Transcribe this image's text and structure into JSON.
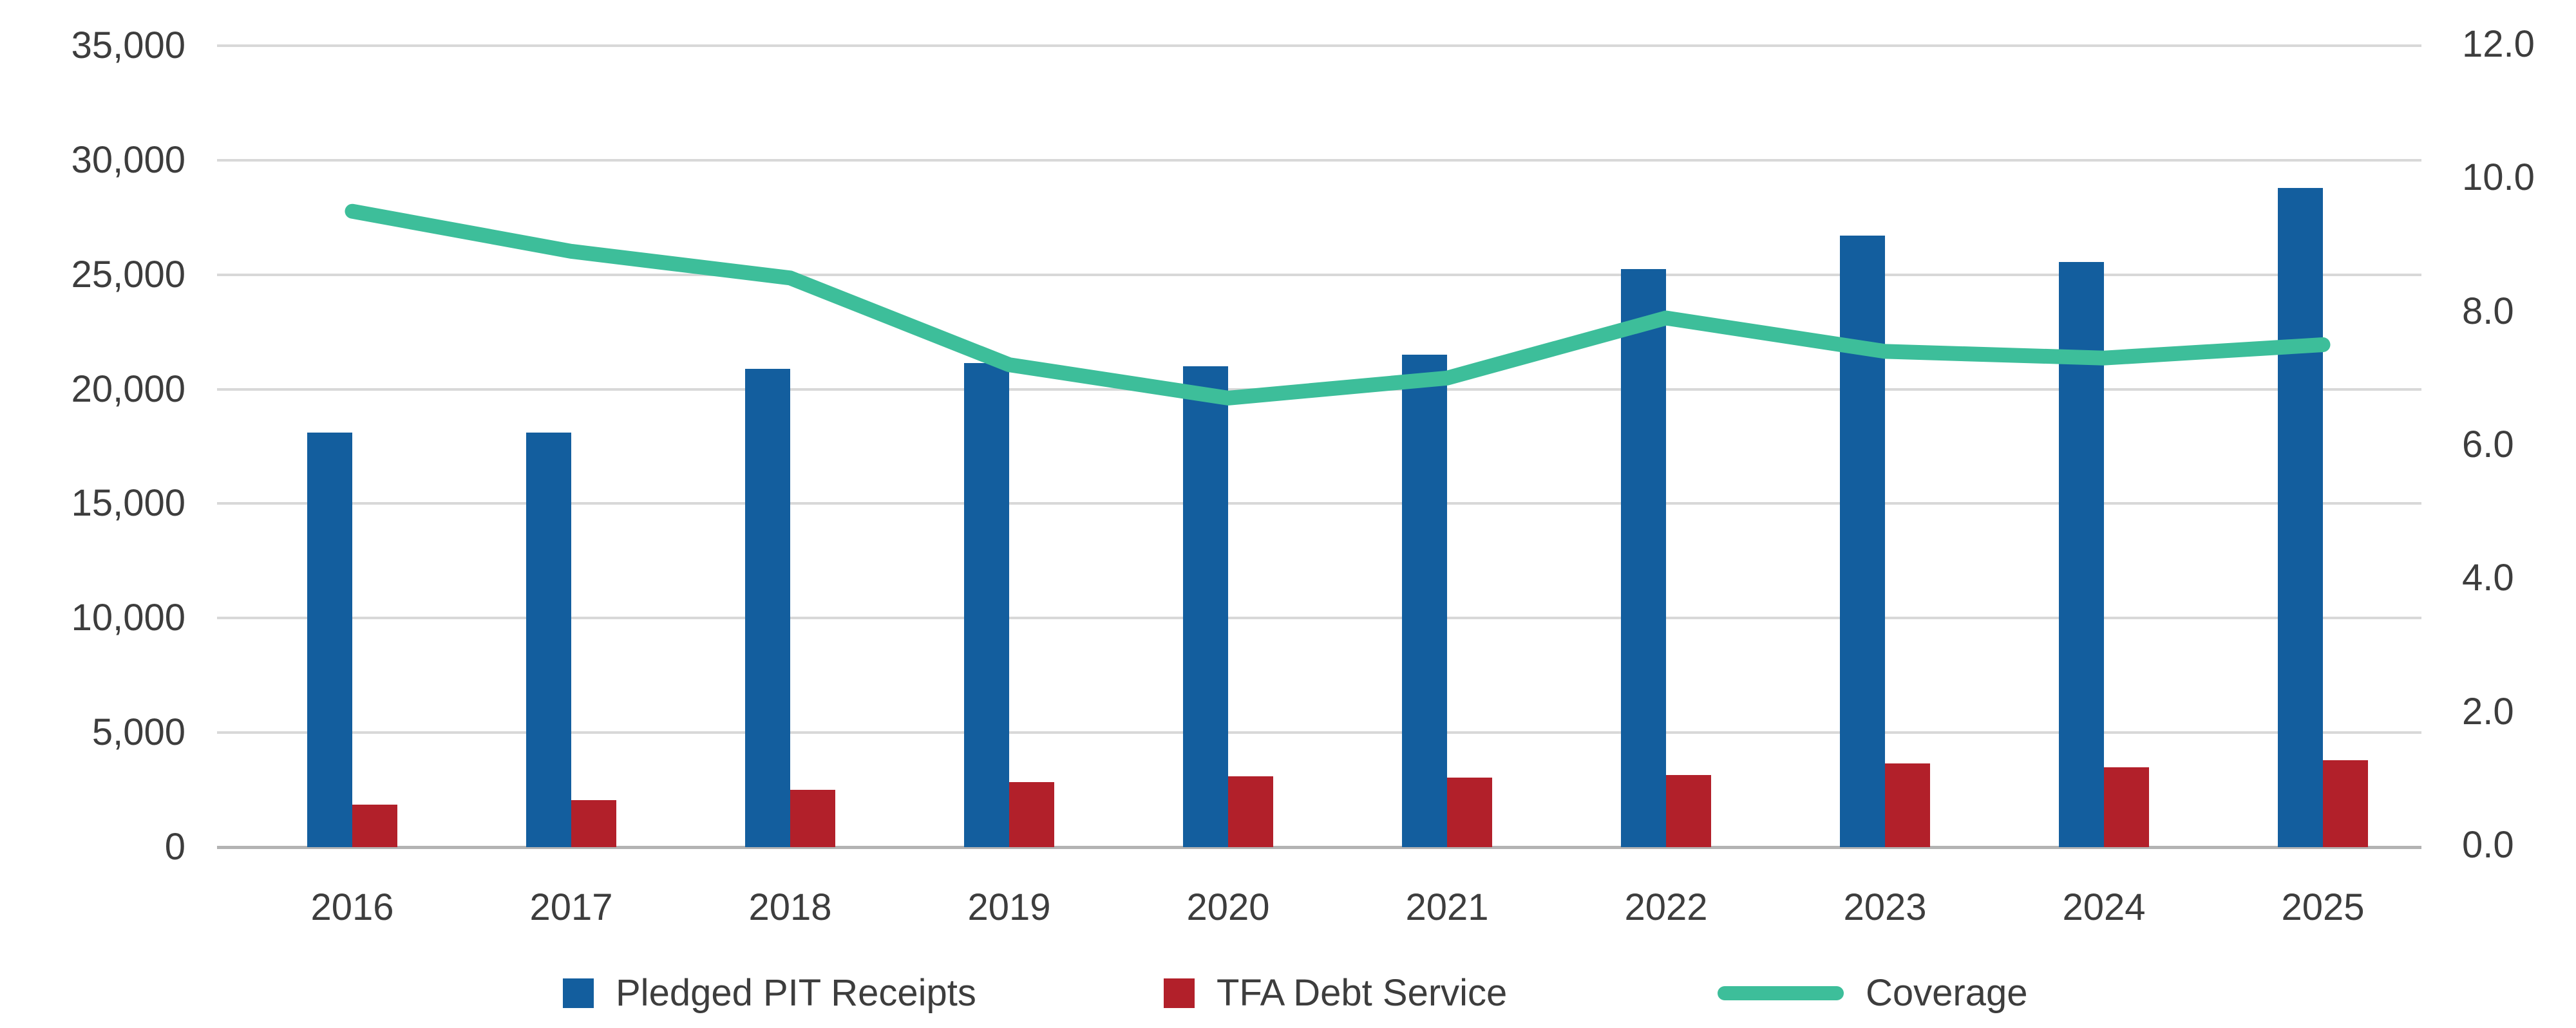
{
  "chart_data": {
    "type": "combo",
    "categories": [
      "2016",
      "2017",
      "2018",
      "2019",
      "2020",
      "2021",
      "2022",
      "2023",
      "2024",
      "2025"
    ],
    "series": [
      {
        "name": "Pledged PIT Receipts",
        "type": "bar",
        "axis": "left",
        "color": "#135E9E",
        "values": [
          18100,
          18100,
          20900,
          21150,
          21000,
          21500,
          25250,
          26700,
          25550,
          28800
        ]
      },
      {
        "name": "TFA Debt Service",
        "type": "bar",
        "axis": "left",
        "color": "#B2202A",
        "values": [
          1850,
          2050,
          2500,
          2850,
          3100,
          3050,
          3150,
          3650,
          3500,
          3800
        ]
      },
      {
        "name": "Coverage",
        "type": "line",
        "axis": "right",
        "color": "#3DBE9A",
        "values": [
          9.5,
          8.9,
          8.5,
          7.2,
          6.7,
          7.0,
          7.9,
          7.4,
          7.3,
          7.5
        ]
      }
    ],
    "left_axis": {
      "min": 0,
      "max": 35000,
      "step": 5000,
      "tick_labels": [
        "35,000",
        "30,000",
        "25,000",
        "20,000",
        "15,000",
        "10,000",
        "5,000",
        "0"
      ]
    },
    "right_axis": {
      "min": 0,
      "max": 12,
      "step": 2,
      "tick_labels": [
        "12.0",
        "10.0",
        "8.0",
        "6.0",
        "4.0",
        "2.0",
        "0.0"
      ]
    },
    "grid": true,
    "legend_position": "bottom",
    "title": "",
    "xlabel": "",
    "ylabel": ""
  },
  "colors": {
    "grid": "#d8d8d8",
    "baseline": "#b3b3b3",
    "text": "#3d3d3d",
    "background": "#ffffff"
  }
}
